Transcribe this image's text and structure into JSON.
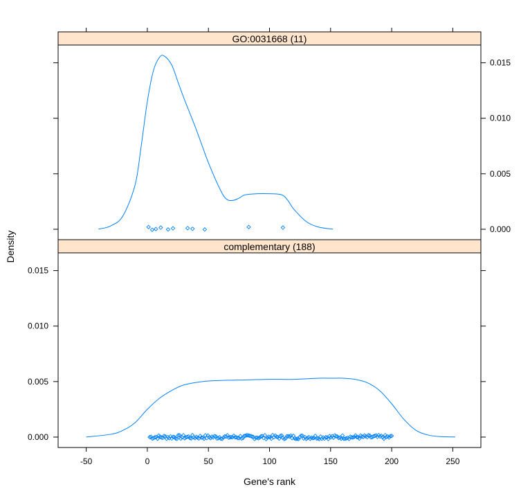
{
  "chart_data": {
    "type": "line",
    "xlabel": "Gene's rank",
    "ylabel": "Density",
    "xlim": [
      -73,
      273
    ],
    "ylim": [
      -0.00094,
      0.0166
    ],
    "x_ticks": [
      -50,
      0,
      50,
      100,
      150,
      200,
      250
    ],
    "x_tick_labels": [
      "-50",
      "0",
      "50",
      "100",
      "150",
      "200",
      "250"
    ],
    "y_ticks": [
      0,
      0.005,
      0.01,
      0.015
    ],
    "y_tick_labels": [
      "0.000",
      "0.005",
      "0.010",
      "0.015"
    ],
    "grid": false,
    "colors": {
      "series": "#0080ff",
      "strip_fill": "#ffe5cc",
      "frame": "#000000"
    },
    "panels": [
      {
        "strip": "GO:0031668  (11)",
        "series": [
          {
            "x": [
              -40,
              -30,
              -20,
              -10,
              -5,
              0,
              5,
              10,
              14,
              20,
              25,
              30,
              40,
              50,
              60,
              65,
              70,
              75,
              80,
              90,
              100,
              110,
              115,
              120,
              130,
              140,
              152
            ],
            "y": [
              1e-05,
              0.0003,
              0.0012,
              0.004,
              0.0075,
              0.0115,
              0.0143,
              0.0155,
              0.0156,
              0.0148,
              0.0133,
              0.0118,
              0.009,
              0.006,
              0.0035,
              0.0027,
              0.0026,
              0.0028,
              0.0031,
              0.0032,
              0.0032,
              0.0031,
              0.0026,
              0.0018,
              0.0007,
              0.0002,
              1e-05
            ]
          }
        ],
        "points": [
          {
            "x": 1,
            "y": 0.0002
          },
          {
            "x": 4,
            "y": -5e-05
          },
          {
            "x": 7,
            "y": 2e-05
          },
          {
            "x": 11,
            "y": 0.00015
          },
          {
            "x": 17,
            "y": -2e-05
          },
          {
            "x": 21,
            "y": 8e-05
          },
          {
            "x": 33,
            "y": 0.0001
          },
          {
            "x": 37,
            "y": 4e-05
          },
          {
            "x": 47,
            "y": -2e-05
          },
          {
            "x": 83,
            "y": 0.0002
          },
          {
            "x": 111,
            "y": 0.00015
          }
        ]
      },
      {
        "strip": "complementary  (188)",
        "series": [
          {
            "x": [
              -50,
              -30,
              -20,
              -10,
              0,
              10,
              20,
              30,
              45,
              60,
              80,
              100,
              120,
              140,
              150,
              160,
              170,
              180,
              190,
              200,
              210,
              220,
              230,
              240,
              252
            ],
            "y": [
              1e-05,
              0.00025,
              0.0006,
              0.0013,
              0.0025,
              0.0035,
              0.0042,
              0.0047,
              0.005,
              0.0051,
              0.00515,
              0.0052,
              0.0052,
              0.0053,
              0.0053,
              0.0053,
              0.0052,
              0.0049,
              0.0042,
              0.003,
              0.0016,
              0.0006,
              0.00018,
              4e-05,
              1e-05
            ]
          }
        ],
        "points_range": [
          2,
          200
        ],
        "points_count": 188,
        "points_jitter": 0.00018
      }
    ]
  }
}
